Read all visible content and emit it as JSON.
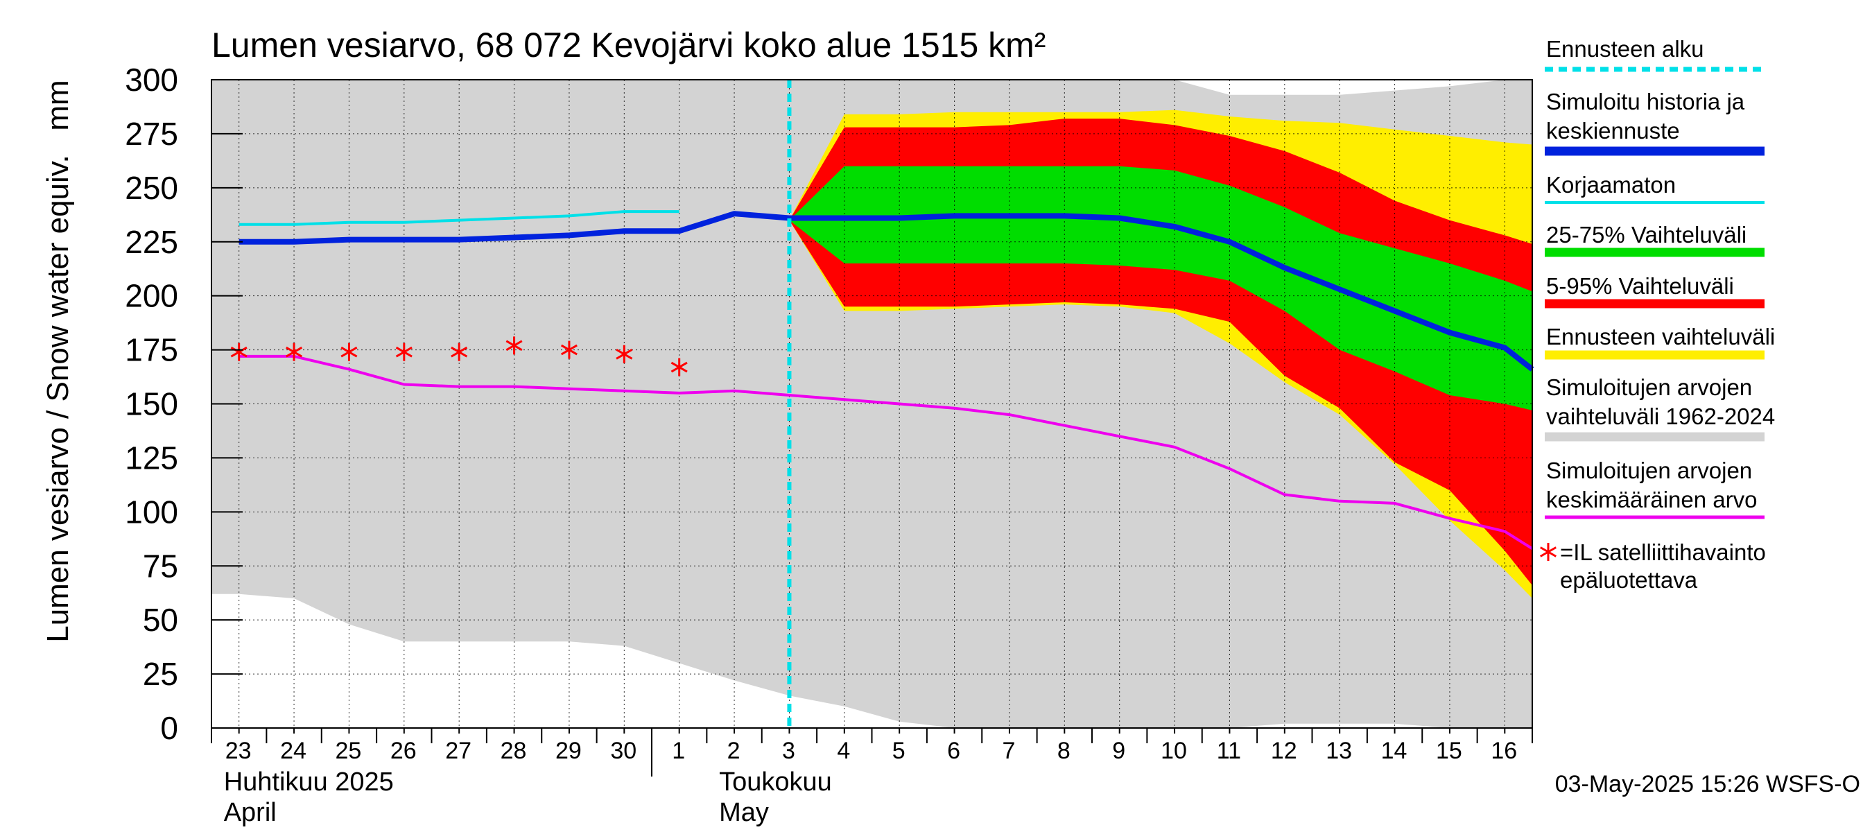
{
  "chart_data": {
    "type": "area",
    "title": "Lumen vesiarvo, 68 072 Kevojärvi koko alue 1515 km²",
    "ylabel": "Lumen vesiarvo / Snow water equiv.",
    "yunit": "mm",
    "ylim": [
      0,
      300
    ],
    "yticks": [
      0,
      25,
      50,
      75,
      100,
      125,
      150,
      175,
      200,
      225,
      250,
      275,
      300
    ],
    "xlim": [
      -0.5,
      23.5
    ],
    "xticks": [
      {
        "x": 0,
        "label": "23"
      },
      {
        "x": 1,
        "label": "24"
      },
      {
        "x": 2,
        "label": "25"
      },
      {
        "x": 3,
        "label": "26"
      },
      {
        "x": 4,
        "label": "27"
      },
      {
        "x": 5,
        "label": "28"
      },
      {
        "x": 6,
        "label": "29"
      },
      {
        "x": 7,
        "label": "30"
      },
      {
        "x": 8,
        "label": "1"
      },
      {
        "x": 9,
        "label": "2"
      },
      {
        "x": 10,
        "label": "3"
      },
      {
        "x": 11,
        "label": "4"
      },
      {
        "x": 12,
        "label": "5"
      },
      {
        "x": 13,
        "label": "6"
      },
      {
        "x": 14,
        "label": "7"
      },
      {
        "x": 15,
        "label": "8"
      },
      {
        "x": 16,
        "label": "9"
      },
      {
        "x": 17,
        "label": "10"
      },
      {
        "x": 18,
        "label": "11"
      },
      {
        "x": 19,
        "label": "12"
      },
      {
        "x": 20,
        "label": "13"
      },
      {
        "x": 21,
        "label": "14"
      },
      {
        "x": 22,
        "label": "15"
      },
      {
        "x": 23,
        "label": "16"
      }
    ],
    "month_labels": [
      {
        "at": 0,
        "lines": [
          "Huhtikuu  2025",
          "April"
        ]
      },
      {
        "at": 9,
        "lines": [
          "Toukokuu",
          "May"
        ]
      }
    ],
    "month_separator_x": 7.5,
    "forecast_start_x": 10,
    "grid": true,
    "legend_position": "right",
    "legend": [
      {
        "label": "Ennusteen alku",
        "color": "#00e0e8",
        "style": "dashed"
      },
      {
        "label": "Simuloitu historia ja keskiennuste",
        "lines": [
          "Simuloitu historia ja",
          "keskiennuste"
        ],
        "color": "#0022dd",
        "style": "thick"
      },
      {
        "label": "Korjaamaton",
        "color": "#00e0e8",
        "style": "thin"
      },
      {
        "label": "25-75% Vaihteluväli",
        "color": "#00dd00",
        "style": "thick"
      },
      {
        "label": "5-95% Vaihteluväli",
        "color": "#ff0000",
        "style": "thick"
      },
      {
        "label": "Ennusteen vaihteluväli",
        "color": "#ffee00",
        "style": "thick"
      },
      {
        "label": "Simuloitujen arvojen vaihteluväli 1962-2024",
        "lines": [
          "Simuloitujen arvojen",
          "vaihteluväli 1962-2024"
        ],
        "color": "#d3d3d3",
        "style": "thick"
      },
      {
        "label": "Simuloitujen arvojen keskimääräinen arvo",
        "lines": [
          "Simuloitujen arvojen",
          "keskimääräinen arvo"
        ],
        "color": "#ee00ee",
        "style": "medium"
      },
      {
        "label": "=IL satelliittihavainto epäluotettava",
        "lines": [
          "=IL satelliittihavainto",
          "epäluotettava"
        ],
        "color": "#ff0000",
        "style": "star"
      }
    ],
    "timestamp": "03-May-2025 15:26 WSFS-O",
    "series": [
      {
        "name": "Simuloitujen arvojen vaihteluväli 1962-2024",
        "kind": "band",
        "color": "#d3d3d3",
        "x": [
          -0.5,
          0,
          1,
          2,
          3,
          4,
          5,
          6,
          7,
          8,
          9,
          10,
          11,
          12,
          13,
          14,
          15,
          16,
          17,
          18,
          19,
          20,
          21,
          22,
          23,
          23.5
        ],
        "lower": [
          62,
          62,
          60,
          48,
          40,
          40,
          40,
          40,
          38,
          30,
          22,
          15,
          10,
          3,
          0,
          0,
          0,
          0,
          0,
          0,
          2,
          2,
          2,
          0,
          0,
          0
        ],
        "upper": [
          300,
          300,
          300,
          300,
          300,
          300,
          300,
          300,
          300,
          300,
          300,
          300,
          300,
          300,
          300,
          300,
          300,
          300,
          300,
          293,
          293,
          293,
          295,
          297,
          300,
          300
        ]
      },
      {
        "name": "Ennusteen vaihteluväli",
        "kind": "band",
        "color": "#ffee00",
        "x": [
          10,
          11,
          12,
          13,
          14,
          15,
          16,
          17,
          18,
          19,
          20,
          21,
          22,
          23,
          23.5
        ],
        "lower": [
          235,
          193,
          193,
          194,
          195,
          196,
          195,
          192,
          178,
          160,
          145,
          122,
          96,
          73,
          60
        ],
        "upper": [
          235,
          284,
          284,
          285,
          285,
          285,
          285,
          286,
          283,
          281,
          280,
          277,
          274,
          271,
          270
        ]
      },
      {
        "name": "5-95% Vaihteluväli",
        "kind": "band",
        "color": "#ff0000",
        "x": [
          10,
          11,
          12,
          13,
          14,
          15,
          16,
          17,
          18,
          19,
          20,
          21,
          22,
          23,
          23.5
        ],
        "lower": [
          235,
          195,
          195,
          195,
          196,
          197,
          196,
          194,
          188,
          163,
          148,
          123,
          110,
          82,
          66
        ],
        "upper": [
          235,
          278,
          278,
          278,
          279,
          282,
          282,
          279,
          274,
          267,
          257,
          244,
          235,
          228,
          224
        ]
      },
      {
        "name": "25-75% Vaihteluväli",
        "kind": "band",
        "color": "#00dd00",
        "x": [
          10,
          11,
          12,
          13,
          14,
          15,
          16,
          17,
          18,
          19,
          20,
          21,
          22,
          23,
          23.5
        ],
        "lower": [
          235,
          215,
          215,
          215,
          215,
          215,
          214,
          212,
          207,
          193,
          175,
          165,
          154,
          150,
          147
        ],
        "upper": [
          235,
          260,
          260,
          260,
          260,
          260,
          260,
          258,
          251,
          241,
          229,
          222,
          215,
          207,
          202
        ]
      },
      {
        "name": "Korjaamaton",
        "kind": "line",
        "color": "#00e0e8",
        "width": 4,
        "x": [
          0,
          1,
          2,
          3,
          4,
          5,
          6,
          7,
          8
        ],
        "y": [
          233,
          233,
          234,
          234,
          235,
          236,
          237,
          239,
          239
        ]
      },
      {
        "name": "Simuloitujen arvojen keskimääräinen arvo",
        "kind": "line",
        "color": "#ee00ee",
        "width": 4,
        "x": [
          0,
          1,
          2,
          3,
          4,
          5,
          6,
          7,
          8,
          9,
          10,
          11,
          12,
          13,
          14,
          15,
          16,
          17,
          18,
          19,
          20,
          21,
          22,
          23,
          23.5
        ],
        "y": [
          172,
          172,
          166,
          159,
          158,
          158,
          157,
          156,
          155,
          156,
          154,
          152,
          150,
          148,
          145,
          140,
          135,
          130,
          120,
          108,
          105,
          104,
          97,
          91,
          83
        ]
      },
      {
        "name": "Simuloitu historia ja keskiennuste",
        "kind": "line",
        "color": "#0022dd",
        "width": 8,
        "x": [
          0,
          1,
          2,
          3,
          4,
          5,
          6,
          7,
          8,
          9,
          10,
          11,
          12,
          13,
          14,
          15,
          16,
          17,
          18,
          19,
          20,
          21,
          22,
          23,
          23.5
        ],
        "y": [
          225,
          225,
          226,
          226,
          226,
          227,
          228,
          230,
          230,
          238,
          236,
          236,
          236,
          237,
          237,
          237,
          236,
          232,
          225,
          213,
          203,
          193,
          183,
          176,
          166
        ]
      },
      {
        "name": "=IL satelliittihavainto epäluotettava",
        "kind": "stars",
        "color": "#ff0000",
        "x": [
          0,
          1,
          2,
          3,
          4,
          5,
          6,
          7,
          8
        ],
        "y": [
          174,
          174,
          174,
          174,
          174,
          177,
          175,
          173,
          167
        ]
      }
    ]
  }
}
